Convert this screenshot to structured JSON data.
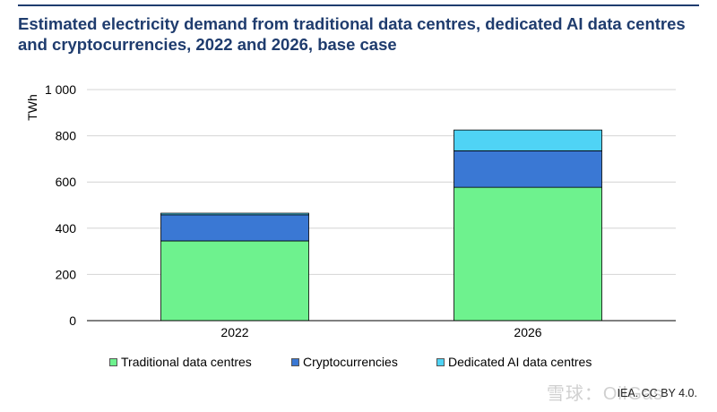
{
  "chart_data": {
    "type": "bar",
    "stacked": true,
    "title": "Estimated electricity demand from traditional data centres, dedicated AI data centres and cryptocurrencies, 2022 and 2026, base case",
    "ylabel": "TWh",
    "xlabel": "",
    "ylim": [
      0,
      1000
    ],
    "yticks": [
      "0",
      "200",
      "400",
      "600",
      "800",
      "1 000"
    ],
    "ytick_values": [
      0,
      200,
      400,
      600,
      800,
      1000
    ],
    "categories": [
      "2022",
      "2026"
    ],
    "grid": true,
    "legend_position": "bottom",
    "series": [
      {
        "name": "Traditional data centres",
        "values": [
          345,
          577
        ],
        "color": "#6ef28e"
      },
      {
        "name": "Cryptocurrencies",
        "values": [
          113,
          158
        ],
        "color": "#3a78d4"
      },
      {
        "name": "Dedicated AI data centres",
        "values": [
          7,
          90
        ],
        "color": "#4fd3f5"
      }
    ]
  },
  "source": "IEA. CC BY 4.0.",
  "watermark": "雪球：OilGas"
}
